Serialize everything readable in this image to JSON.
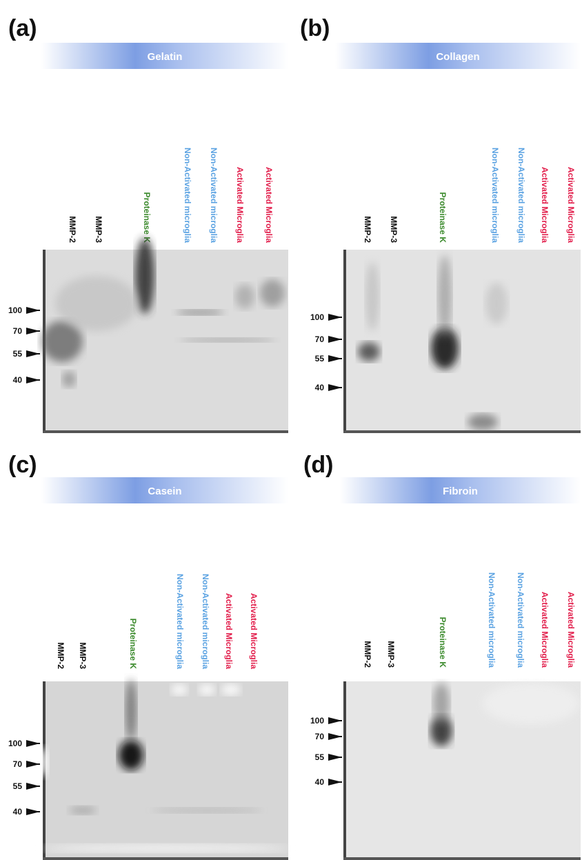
{
  "panels": [
    {
      "label": "(a)",
      "title": "Gelatin",
      "lanes": [
        "MMP-2",
        "MMP-3",
        "Proteinase K",
        "Non-Activated microglia",
        "Non-Activated microglia",
        "Activated Microglia",
        "Activated Microglia"
      ],
      "markers": [
        100,
        70,
        55,
        40
      ]
    },
    {
      "label": "(b)",
      "title": "Collagen",
      "lanes": [
        "MMP-2",
        "MMP-3",
        "Proteinase K",
        "Non-Activated microglia",
        "Non-Activated microglia",
        "Activated Microglia",
        "Activated Microglia"
      ],
      "markers": [
        100,
        70,
        55,
        40
      ]
    },
    {
      "label": "(c)",
      "title": "Casein",
      "lanes": [
        "MMP-2",
        "MMP-3",
        "Proteinase K",
        "Non-Activated microglia",
        "Non-Activated microglia",
        "Activated Microglia",
        "Activated Microglia"
      ],
      "markers": [
        100,
        70,
        55,
        40
      ]
    },
    {
      "label": "(d)",
      "title": "Fibroin",
      "lanes": [
        "MMP-2",
        "MMP-3",
        "Proteinase K",
        "Non-Activated microglia",
        "Non-Activated microglia",
        "Activated Microglia",
        "Activated Microglia"
      ],
      "markers": [
        100,
        70,
        55,
        40
      ]
    }
  ]
}
